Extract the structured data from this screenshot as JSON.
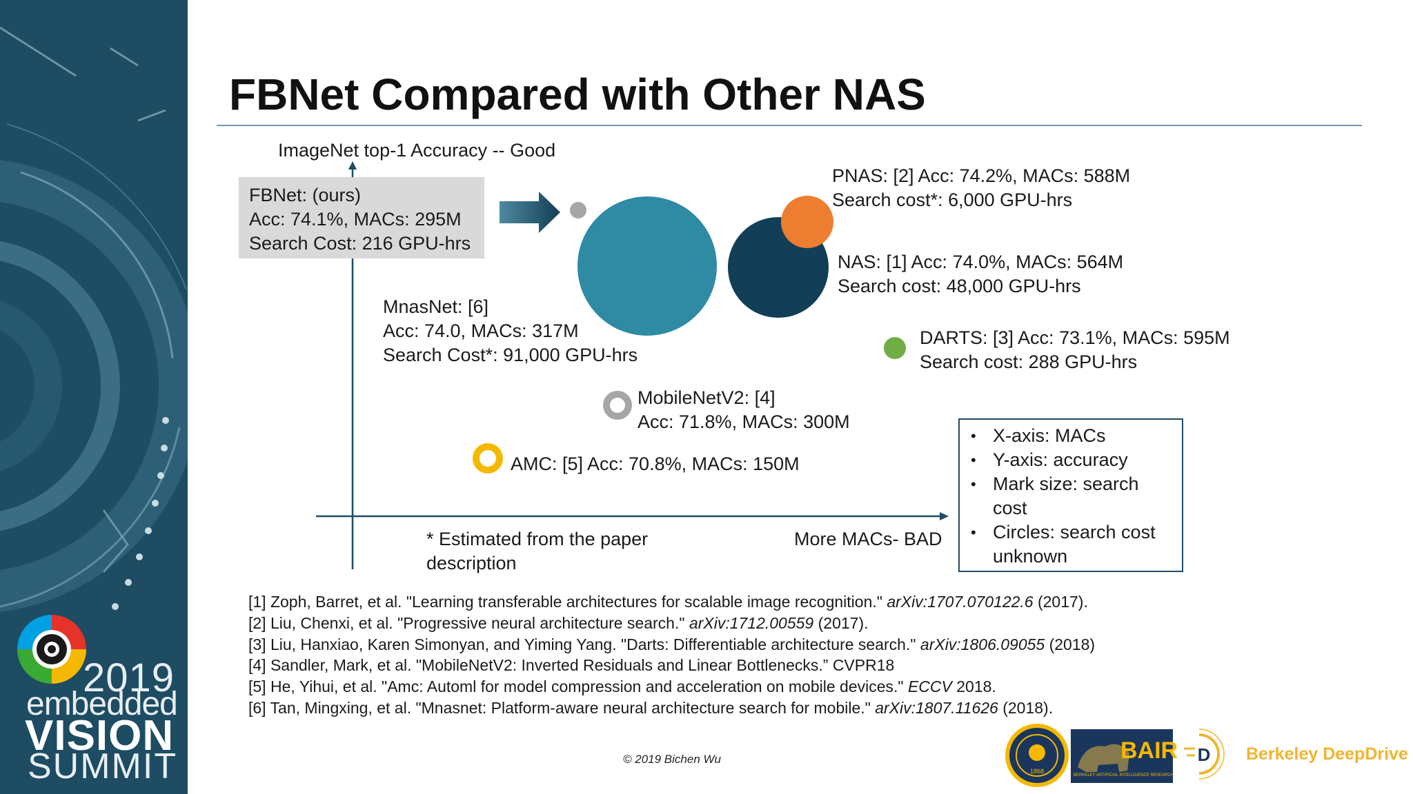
{
  "title": "FBNet Compared with Other NAS",
  "sidebar": {
    "year": "2019",
    "line1": "embedded",
    "line2": "VISION",
    "line3": "SUMMIT"
  },
  "colors": {
    "sidebar_bg": "#1d4c63",
    "mnasnet": "#2e8ba3",
    "nas": "#123e57",
    "pnas": "#ed7d31",
    "darts": "#70ad47",
    "fbnet": "#a6a6a6",
    "amc": "#f5b800",
    "mobilenetv2": "#a6a6a6",
    "arrow": "#1d4c63"
  },
  "axes": {
    "y_label": "ImageNet top-1 Accuracy -- Good",
    "x_label": "More MACs- BAD",
    "note_line1": "* Estimated from the paper",
    "note_line2": "description"
  },
  "fbnet_box": {
    "line1": "FBNet: (ours)",
    "line2": "Acc: 74.1%, MACs: 295M",
    "line3": "Search Cost: 216 GPU-hrs"
  },
  "chart_data": {
    "type": "scatter",
    "xlabel": "More MACs- BAD",
    "ylabel": "ImageNet top-1 Accuracy -- Good",
    "points": [
      {
        "name": "FBNet",
        "acc": 74.1,
        "macs_M": 295,
        "search_cost_gpu_hrs": 216,
        "labels": [
          "FBNet: (ours)",
          "Acc: 74.1%, MACs: 295M",
          "Search Cost: 216 GPU-hrs"
        ]
      },
      {
        "name": "MnasNet",
        "acc": 74.0,
        "macs_M": 317,
        "search_cost_gpu_hrs": 91000,
        "labels": [
          "MnasNet: [6]",
          "Acc: 74.0, MACs: 317M",
          "Search Cost*: 91,000 GPU-hrs"
        ]
      },
      {
        "name": "NAS",
        "acc": 74.0,
        "macs_M": 564,
        "search_cost_gpu_hrs": 48000,
        "labels": [
          "NAS: [1] Acc: 74.0%, MACs: 564M",
          "Search cost: 48,000 GPU-hrs"
        ]
      },
      {
        "name": "PNAS",
        "acc": 74.2,
        "macs_M": 588,
        "search_cost_gpu_hrs": 6000,
        "labels": [
          "PNAS: [2] Acc: 74.2%, MACs: 588M",
          "Search cost*: 6,000 GPU-hrs"
        ]
      },
      {
        "name": "DARTS",
        "acc": 73.1,
        "macs_M": 595,
        "search_cost_gpu_hrs": 288,
        "labels": [
          "DARTS: [3] Acc: 73.1%, MACs: 595M",
          "Search cost: 288 GPU-hrs"
        ]
      },
      {
        "name": "MobileNetV2",
        "acc": 71.8,
        "macs_M": 300,
        "search_cost_gpu_hrs": null,
        "labels": [
          "MobileNetV2: [4]",
          "Acc: 71.8%, MACs: 300M"
        ]
      },
      {
        "name": "AMC",
        "acc": 70.8,
        "macs_M": 150,
        "search_cost_gpu_hrs": null,
        "labels": [
          "AMC: [5] Acc: 70.8%, MACs: 150M"
        ]
      }
    ]
  },
  "legend": [
    "X-axis: MACs",
    "Y-axis: accuracy",
    "Mark size: search cost",
    "Circles: search cost unknown"
  ],
  "references": [
    {
      "pre": "[1] Zoph, Barret, et al. \"Learning transferable architectures for scalable image recognition.\" ",
      "ital": "arXiv:1707.070122.6",
      "post": " (2017)."
    },
    {
      "pre": "[2] Liu, Chenxi, et al. \"Progressive neural architecture search.\" ",
      "ital": "arXiv:1712.00559",
      "post": " (2017)."
    },
    {
      "pre": "[3] Liu, Hanxiao, Karen Simonyan, and Yiming Yang. \"Darts: Differentiable architecture search.\" ",
      "ital": "arXiv:1806.09055",
      "post": " (2018)"
    },
    {
      "pre": "[4] Sandler, Mark, et al. \"MobileNetV2: Inverted Residuals and Linear Bottlenecks.” CVPR18",
      "ital": "",
      "post": ""
    },
    {
      "pre": "[5] He, Yihui, et al. \"Amc: Automl for model compression and acceleration on mobile devices.\" ",
      "ital": "ECCV",
      "post": " 2018."
    },
    {
      "pre": "[6] Tan, Mingxing, et al. \"Mnasnet: Platform-aware neural architecture search for mobile.\" ",
      "ital": "arXiv:1807.11626",
      "post": " (2018)."
    }
  ],
  "copyright": "© 2019 Bichen Wu",
  "logos": {
    "bair": "BAIR",
    "bair_sub": "BERKELEY ARTIFICIAL INTELLIGENCE RESEARCH",
    "bdd_letter": "D",
    "bdd": "Berkeley DeepDrive",
    "uc_seal_year": "1868"
  }
}
